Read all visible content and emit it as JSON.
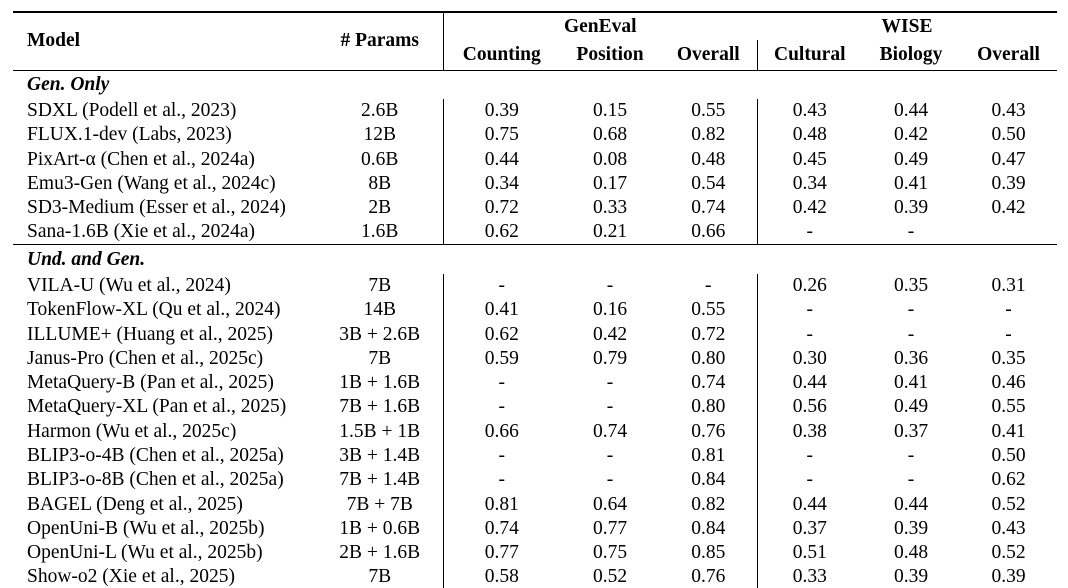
{
  "table": {
    "columns": {
      "model": "Model",
      "params": "# Params",
      "group1": "GenEval",
      "group1_cols": [
        "Counting",
        "Position",
        "Overall"
      ],
      "group2": "WISE",
      "group2_cols": [
        "Cultural",
        "Biology",
        "Overall"
      ]
    },
    "sections": [
      {
        "label": "Gen. Only",
        "rows": [
          {
            "model": "SDXL (Podell et al., 2023)",
            "params": "2.6B",
            "values": [
              "0.39",
              "0.15",
              "0.55",
              "0.43",
              "0.44",
              "0.43"
            ]
          },
          {
            "model": "FLUX.1-dev (Labs, 2023)",
            "params": "12B",
            "values": [
              "0.75",
              "0.68",
              "0.82",
              "0.48",
              "0.42",
              "0.50"
            ]
          },
          {
            "model": "PixArt-α (Chen et al., 2024a)",
            "params": "0.6B",
            "values": [
              "0.44",
              "0.08",
              "0.48",
              "0.45",
              "0.49",
              "0.47"
            ]
          },
          {
            "model": "Emu3-Gen (Wang et al., 2024c)",
            "params": "8B",
            "values": [
              "0.34",
              "0.17",
              "0.54",
              "0.34",
              "0.41",
              "0.39"
            ]
          },
          {
            "model": "SD3-Medium (Esser et al., 2024)",
            "params": "2B",
            "values": [
              "0.72",
              "0.33",
              "0.74",
              "0.42",
              "0.39",
              "0.42"
            ]
          },
          {
            "model": "Sana-1.6B (Xie et al., 2024a)",
            "params": "1.6B",
            "values": [
              "0.62",
              "0.21",
              "0.66",
              "-",
              "-",
              ""
            ]
          }
        ]
      },
      {
        "label": "Und. and Gen.",
        "rows": [
          {
            "model": "VILA-U (Wu et al., 2024)",
            "params": "7B",
            "values": [
              "-",
              "-",
              "-",
              "0.26",
              "0.35",
              "0.31"
            ]
          },
          {
            "model": "TokenFlow-XL (Qu et al., 2024)",
            "params": "14B",
            "values": [
              "0.41",
              "0.16",
              "0.55",
              "-",
              "-",
              "-"
            ]
          },
          {
            "model": "ILLUME+ (Huang et al., 2025)",
            "params": "3B + 2.6B",
            "values": [
              "0.62",
              "0.42",
              "0.72",
              "-",
              "-",
              "-"
            ]
          },
          {
            "model": "Janus-Pro (Chen et al., 2025c)",
            "params": "7B",
            "values": [
              "0.59",
              "0.79",
              "0.80",
              "0.30",
              "0.36",
              "0.35"
            ]
          },
          {
            "model": "MetaQuery-B (Pan et al., 2025)",
            "params": "1B + 1.6B",
            "values": [
              "-",
              "-",
              "0.74",
              "0.44",
              "0.41",
              "0.46"
            ]
          },
          {
            "model": "MetaQuery-XL (Pan et al., 2025)",
            "params": "7B + 1.6B",
            "values": [
              "-",
              "-",
              "0.80",
              "0.56",
              "0.49",
              "0.55"
            ]
          },
          {
            "model": "Harmon (Wu et al., 2025c)",
            "params": "1.5B + 1B",
            "values": [
              "0.66",
              "0.74",
              "0.76",
              "0.38",
              "0.37",
              "0.41"
            ]
          },
          {
            "model": "BLIP3-o-4B (Chen et al., 2025a)",
            "params": "3B + 1.4B",
            "values": [
              "-",
              "-",
              "0.81",
              "-",
              "-",
              "0.50"
            ]
          },
          {
            "model": "BLIP3-o-8B (Chen et al., 2025a)",
            "params": "7B + 1.4B",
            "values": [
              "-",
              "-",
              "0.84",
              "-",
              "-",
              "0.62"
            ]
          },
          {
            "model": "BAGEL (Deng et al., 2025)",
            "params": "7B + 7B",
            "values": [
              "0.81",
              "0.64",
              "0.82",
              "0.44",
              "0.44",
              "0.52"
            ]
          },
          {
            "model": "OpenUni-B (Wu et al., 2025b)",
            "params": "1B + 0.6B",
            "values": [
              "0.74",
              "0.77",
              "0.84",
              "0.37",
              "0.39",
              "0.43"
            ]
          },
          {
            "model": "OpenUni-L (Wu et al., 2025b)",
            "params": "2B + 1.6B",
            "values": [
              "0.77",
              "0.75",
              "0.85",
              "0.51",
              "0.48",
              "0.52"
            ]
          },
          {
            "model": "Show-o2 (Xie et al., 2025)",
            "params": "7B",
            "values": [
              "0.58",
              "0.52",
              "0.76",
              "0.33",
              "0.39",
              "0.39"
            ]
          }
        ]
      }
    ]
  },
  "colors": {
    "text": "#000000",
    "background": "#ffffff",
    "rule": "#000000"
  }
}
